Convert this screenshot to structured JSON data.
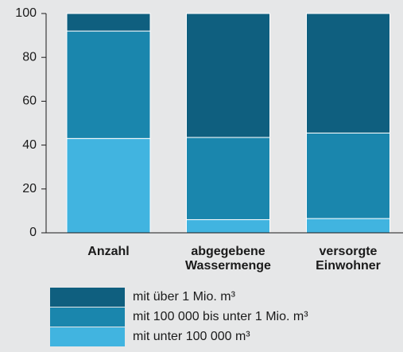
{
  "chart_data": {
    "type": "stacked_bar",
    "categories": [
      "Anzahl",
      "abgegebene Wassermenge",
      "versorgte Einwohner"
    ],
    "series": [
      {
        "name": "mit unter 100 000 m³",
        "color": "#41b4e0",
        "values": [
          43,
          6,
          6.5
        ]
      },
      {
        "name": "mit 100 000 bis unter 1 Mio. m³",
        "color": "#1a86ad",
        "values": [
          49,
          37.5,
          39
        ]
      },
      {
        "name": "mit über 1 Mio. m³",
        "color": "#0f5f7f",
        "values": [
          8,
          56.5,
          54.5
        ]
      }
    ],
    "ylim": [
      0,
      100
    ],
    "yticks": [
      0,
      20,
      40,
      60,
      80,
      100
    ]
  }
}
